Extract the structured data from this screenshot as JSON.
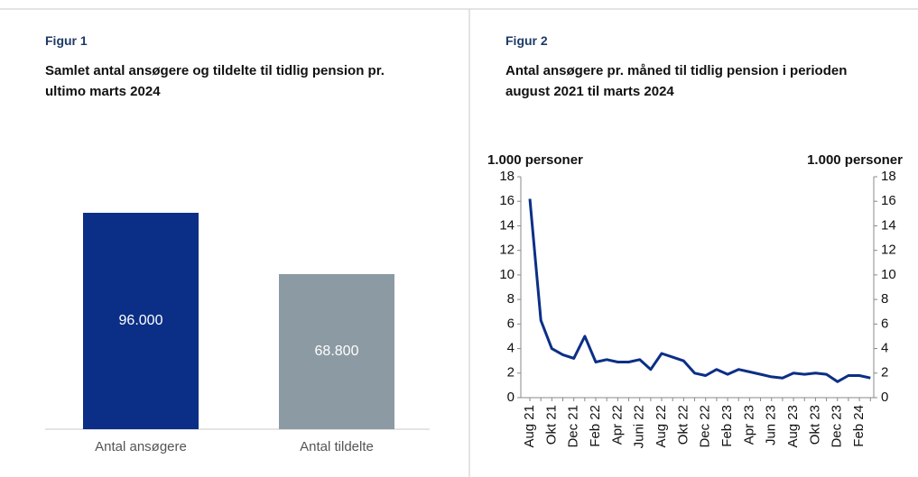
{
  "chart_data": [
    {
      "type": "bar",
      "figure": "Figur 1",
      "title": "Samlet antal ansøgere og tildelte til tidlig pension pr. ultimo marts 2024",
      "categories": [
        "Antal ansøgere",
        "Antal tildelte"
      ],
      "values": [
        96000,
        68800
      ],
      "value_labels": [
        "96.000",
        "68.800"
      ],
      "colors": [
        "#0b2f86",
        "#8c9aa3"
      ]
    },
    {
      "type": "line",
      "figure": "Figur 2",
      "title": "Antal ansøgere pr. måned til tidlig pension i perioden august 2021 til marts 2024",
      "ylabel": "1.000 personer",
      "y2label": "1.000 personer",
      "categories": [
        "Aug 21",
        null,
        "Okt 21",
        null,
        "Dec 21",
        null,
        "Feb 22",
        null,
        "Apr 22",
        null,
        "Juni 22",
        null,
        "Aug 22",
        null,
        "Okt 22",
        null,
        "Dec 22",
        null,
        "Feb 23",
        null,
        "Apr 23",
        null,
        "Jun 23",
        null,
        "Aug 23",
        null,
        "Okt 23",
        null,
        "Dec 23",
        null,
        "Feb 24",
        null
      ],
      "series": [
        {
          "color": "#0b2f86",
          "values": [
            16.2,
            6.3,
            4.0,
            3.5,
            3.2,
            5.0,
            2.9,
            3.1,
            2.9,
            2.9,
            3.1,
            2.3,
            3.6,
            3.3,
            3.0,
            2.0,
            1.8,
            2.3,
            1.9,
            2.3,
            2.1,
            1.9,
            1.7,
            1.6,
            2.0,
            1.9,
            2.0,
            1.9,
            1.3,
            1.8,
            1.8,
            1.6
          ]
        }
      ],
      "ylim": [
        0,
        18
      ],
      "yticks": [
        0,
        2,
        4,
        6,
        8,
        10,
        12,
        14,
        16,
        18
      ],
      "y2lim": [
        0,
        18
      ],
      "y2ticks": [
        0,
        2,
        4,
        6,
        8,
        10,
        12,
        14,
        16,
        18
      ]
    }
  ]
}
